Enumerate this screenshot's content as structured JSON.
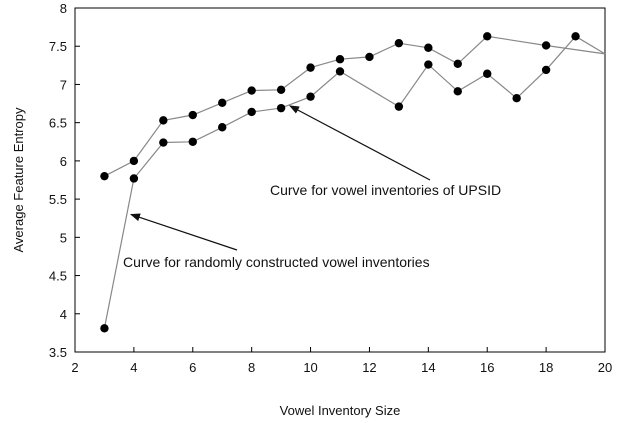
{
  "chart_data": {
    "type": "line",
    "title": "",
    "xlabel": "Vowel Inventory Size",
    "ylabel": "Average Feature Entropy",
    "xlim": [
      2,
      20
    ],
    "ylim": [
      3.5,
      8
    ],
    "xticks": [
      2,
      4,
      6,
      8,
      10,
      12,
      14,
      16,
      18,
      20
    ],
    "yticks": [
      3.5,
      4,
      4.5,
      5,
      5.5,
      6,
      6.5,
      7,
      7.5,
      8
    ],
    "grid": false,
    "legend": "none",
    "series": [
      {
        "x": [
          3,
          4,
          5,
          6,
          7,
          8,
          9,
          10,
          11,
          12,
          13,
          14,
          15,
          16,
          18,
          20
        ],
        "y": [
          5.8,
          6.0,
          6.53,
          6.6,
          6.76,
          6.92,
          6.93,
          7.22,
          7.33,
          7.36,
          7.54,
          7.48,
          7.27,
          7.63,
          7.51,
          7.4
        ],
        "marker_x_limit": 19
      },
      {
        "x": [
          3,
          4,
          5,
          6,
          7,
          8,
          9,
          10,
          11,
          13,
          14,
          15,
          16,
          17,
          18,
          19,
          20
        ],
        "y": [
          3.81,
          5.77,
          6.24,
          6.25,
          6.44,
          6.64,
          6.69,
          6.84,
          7.17,
          6.71,
          7.26,
          6.91,
          7.14,
          6.82,
          7.19,
          7.63,
          7.4
        ],
        "marker_x_limit": 19
      }
    ],
    "annotations": [
      {
        "text": "Curve for vowel inventories of UPSID",
        "target": [
          9.3,
          6.72
        ]
      },
      {
        "text": "Curve for randomly constructed vowel inventories",
        "target": [
          3.9,
          5.3
        ]
      }
    ]
  },
  "colors": {
    "line": "#888888",
    "marker": "#000000",
    "text": "#111111"
  }
}
